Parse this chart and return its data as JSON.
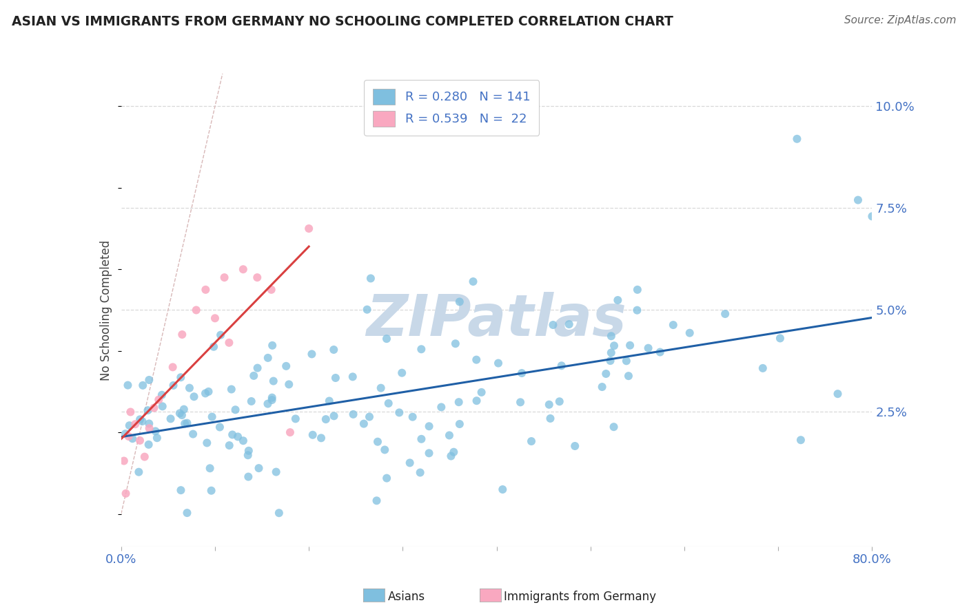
{
  "title": "ASIAN VS IMMIGRANTS FROM GERMANY NO SCHOOLING COMPLETED CORRELATION CHART",
  "source": "Source: ZipAtlas.com",
  "ylabel": "No Schooling Completed",
  "ytick_vals": [
    0.0,
    0.025,
    0.05,
    0.075,
    0.1
  ],
  "ytick_labels": [
    "",
    "2.5%",
    "5.0%",
    "7.5%",
    "10.0%"
  ],
  "xlim": [
    0.0,
    0.8
  ],
  "ylim": [
    -0.008,
    0.108
  ],
  "asian_color": "#7fbfdf",
  "germany_color": "#f9a8c0",
  "trend_asian_color": "#1f5fa6",
  "trend_germany_color": "#d94040",
  "diag_color": "#d8b8b8",
  "background_color": "#ffffff",
  "grid_color": "#d8d8d8",
  "tick_color": "#4472c4",
  "title_color": "#222222",
  "watermark_text": "ZIPatlas",
  "watermark_color": "#c8d8e8",
  "legend_label_color": "#4472c4",
  "asian_R": 0.28,
  "asian_N": 141,
  "germany_R": 0.539,
  "germany_N": 22
}
